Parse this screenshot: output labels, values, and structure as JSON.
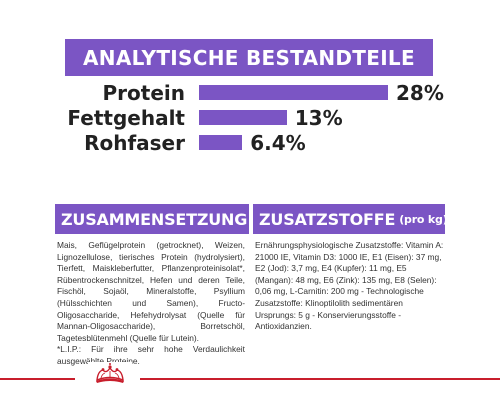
{
  "analysis": {
    "title": "ANALYTISCHE BESTANDTEILE",
    "accent_color": "#7b55c4",
    "nutrients": [
      {
        "label": "Protein",
        "value_text": "28%",
        "value": 28
      },
      {
        "label": "Fettgehalt",
        "value_text": "13%",
        "value": 13
      },
      {
        "label": "Rohfaser",
        "value_text": "6.4%",
        "value": 6.4
      }
    ]
  },
  "composition": {
    "title": "ZUSAMMENSETZUNG",
    "text": "Mais, Geflügelprotein (getrocknet), Weizen, Lignozellulose, tierisches Protein (hydrolysiert), Tierfett, Maiskleberfutter, Pflanzenproteinisolat*, Rübentrockenschnitzel, Hefen und deren Teile, Fischöl, Sojaöl, Mineralstoffe, Psyllium (Hülsschichten und Samen), Fructo-Oligosaccharide, Hefehydrolysat (Quelle für Mannan-Oligosaccharide), Borretschöl, Tagetesblütenmehl (Quelle für Lutein).",
    "footnote": "*L.I.P.: Für ihre sehr hohe Verdaulichkeit ausgewählte Proteine."
  },
  "additives": {
    "title": "ZUSATZSTOFFE",
    "subtitle": "(pro kg)",
    "text": "Ernährungsphysiologische Zusatzstoffe: Vitamin A: 21000 IE, Vitamin D3: 1000 IE, E1 (Eisen): 37 mg, E2 (Jod): 3,7 mg, E4 (Kupfer): 11 mg, E5 (Mangan): 48 mg, E6 (Zink): 135 mg, E8 (Selen): 0,06 mg, L-Carnitin: 200 mg - Technologische Zusatzstoffe: Klinoptilolith sedimentären Ursprungs: 5 g - Konservierungsstoffe - Antioxidanzien."
  },
  "footer": {
    "logo_icon": "royal-canin-crown-icon",
    "line_color": "#c81e2c"
  }
}
